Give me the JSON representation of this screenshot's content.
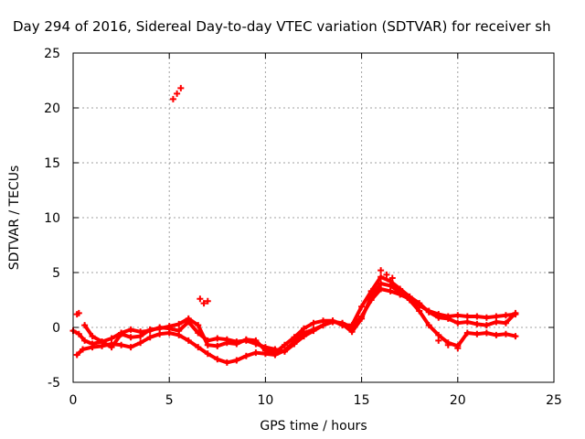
{
  "chart_data": {
    "type": "scatter",
    "title": "Day 294 of 2016, Sidereal Day-to-day VTEC variation (SDTVAR) for receiver sh",
    "xlabel": "GPS time / hours",
    "ylabel": "SDTVAR / TECUs",
    "xlim": [
      0,
      25
    ],
    "ylim": [
      -5,
      25
    ],
    "xticks": [
      0,
      5,
      10,
      15,
      20,
      25
    ],
    "yticks": [
      -5,
      0,
      5,
      10,
      15,
      20,
      25
    ],
    "grid": true,
    "marker": "+",
    "color": "#ff0000",
    "series": [
      {
        "name": "track-1",
        "x": [
          0.0,
          0.3,
          0.6,
          1.0,
          1.5,
          2.0,
          2.5,
          3.0,
          3.5,
          4.0,
          4.5,
          5.0,
          5.5,
          6.0,
          6.5,
          7.0,
          7.5,
          8.0,
          8.5,
          9.0,
          9.5,
          10.0,
          10.5,
          11.0,
          11.5,
          12.0,
          12.5,
          13.0,
          13.5,
          14.0,
          14.5,
          15.0,
          15.5,
          16.0,
          16.5,
          17.0,
          17.5,
          18.0,
          18.5,
          19.0,
          19.5,
          20.0,
          20.5,
          21.0,
          21.5,
          22.0,
          22.5,
          23.0
        ],
        "y": [
          -0.3,
          -0.6,
          -1.2,
          -1.5,
          -1.3,
          -1.0,
          -0.5,
          -0.2,
          -0.4,
          -0.3,
          0.0,
          -0.1,
          -0.3,
          0.5,
          -0.5,
          -1.2,
          -1.0,
          -1.1,
          -1.3,
          -1.2,
          -1.5,
          -1.8,
          -2.0,
          -2.2,
          -1.5,
          -0.8,
          -0.3,
          0.2,
          0.5,
          0.4,
          0.0,
          1.0,
          2.5,
          3.5,
          3.3,
          3.0,
          2.6,
          2.0,
          1.5,
          1.2,
          1.0,
          1.1,
          1.0,
          1.0,
          0.9,
          1.0,
          1.1,
          1.2
        ]
      },
      {
        "name": "track-2",
        "x": [
          0.2,
          0.5,
          1.0,
          1.5,
          2.0,
          2.5,
          3.0,
          3.5,
          4.0,
          4.5,
          5.0,
          5.5,
          6.0,
          6.5,
          7.0,
          7.5,
          8.0,
          8.5,
          9.0,
          9.5,
          10.0,
          10.5,
          11.0,
          11.5,
          12.0,
          12.5,
          13.0,
          13.5,
          14.0,
          14.5,
          15.0,
          15.5,
          16.0,
          16.5,
          17.0,
          17.5,
          18.0,
          18.5,
          19.0,
          19.5,
          20.0,
          20.5,
          21.0,
          21.5,
          22.0,
          22.5,
          23.0
        ],
        "y": [
          -2.5,
          -2.0,
          -1.8,
          -1.7,
          -1.5,
          -1.6,
          -1.8,
          -1.4,
          -0.9,
          -0.6,
          -0.5,
          -0.7,
          -1.2,
          -1.8,
          -2.4,
          -2.9,
          -3.2,
          -3.0,
          -2.6,
          -2.3,
          -2.4,
          -2.5,
          -2.1,
          -1.3,
          -0.5,
          -0.2,
          0.2,
          0.6,
          0.3,
          -0.4,
          0.8,
          2.8,
          4.0,
          3.8,
          3.2,
          2.5,
          1.5,
          0.2,
          -0.7,
          -1.4,
          -1.7,
          -0.5,
          -0.6,
          -0.5,
          -0.7,
          -0.6,
          -0.8
        ]
      },
      {
        "name": "track-3",
        "x": [
          0.6,
          1.0,
          1.5,
          2.0,
          2.5,
          3.0,
          3.5,
          4.0,
          4.5,
          5.0,
          5.5,
          6.0,
          6.5,
          7.0,
          7.5,
          8.0,
          8.5,
          9.0,
          9.5,
          10.0,
          10.5,
          11.0,
          11.5,
          12.0,
          12.5,
          13.0,
          13.5,
          14.0,
          14.5,
          15.0,
          15.5,
          16.0,
          16.5,
          17.0,
          17.5,
          18.0,
          18.5,
          19.0,
          19.5,
          20.0,
          20.5,
          21.0,
          21.5,
          22.0,
          22.5,
          23.0
        ],
        "y": [
          0.2,
          -0.8,
          -1.3,
          -1.8,
          -0.6,
          -0.9,
          -0.8,
          -0.2,
          -0.1,
          0.1,
          0.3,
          0.8,
          0.2,
          -1.6,
          -1.7,
          -1.4,
          -1.5,
          -1.1,
          -1.2,
          -2.1,
          -2.3,
          -1.6,
          -0.9,
          -0.1,
          0.4,
          0.6,
          0.6,
          0.2,
          0.2,
          1.9,
          3.3,
          4.6,
          4.2,
          3.5,
          2.8,
          2.2,
          1.4,
          0.9,
          0.8,
          0.4,
          0.5,
          0.3,
          0.2,
          0.5,
          0.4,
          1.3
        ]
      },
      {
        "name": "track-4",
        "x": [
          0.2,
          0.3,
          5.2,
          5.4,
          5.6,
          6.6,
          6.8,
          7.0,
          16.0,
          16.3,
          16.6,
          19.0,
          19.5,
          20.0
        ],
        "y": [
          1.2,
          1.3,
          20.8,
          21.3,
          21.8,
          2.6,
          2.2,
          2.4,
          5.2,
          4.8,
          4.5,
          -1.2,
          -1.6,
          -1.9
        ]
      }
    ]
  }
}
